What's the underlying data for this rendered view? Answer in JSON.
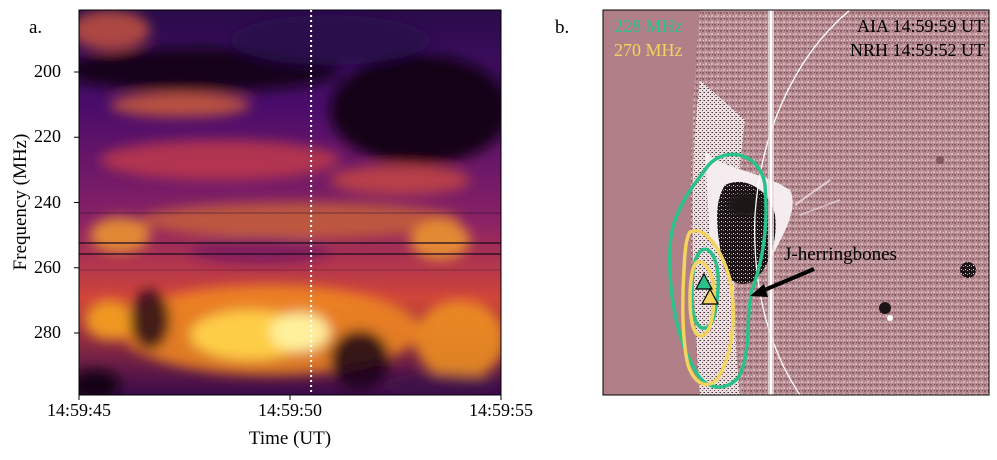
{
  "panel_a": {
    "letter": "a.",
    "chart_data": {
      "type": "heatmap",
      "xlabel": "Time (UT)",
      "ylabel": "Frequency (MHz)",
      "x_ticks": [
        "14:59:45",
        "14:59:50",
        "14:59:55"
      ],
      "y_ticks": [
        200,
        220,
        240,
        260,
        280
      ],
      "ylim": [
        299,
        181
      ],
      "marker_time": "14:59:50.5",
      "colormap": "inferno"
    }
  },
  "panel_b": {
    "letter": "b.",
    "legend": [
      {
        "label": "228 MHz",
        "color": "#2bc18b"
      },
      {
        "label": "270 MHz",
        "color": "#f4d35e"
      }
    ],
    "observations": [
      "AIA 14:59:59 UT",
      "NRH 14:59:52 UT"
    ],
    "annotation": "J-herringbones",
    "background_color": "#b07f88"
  }
}
